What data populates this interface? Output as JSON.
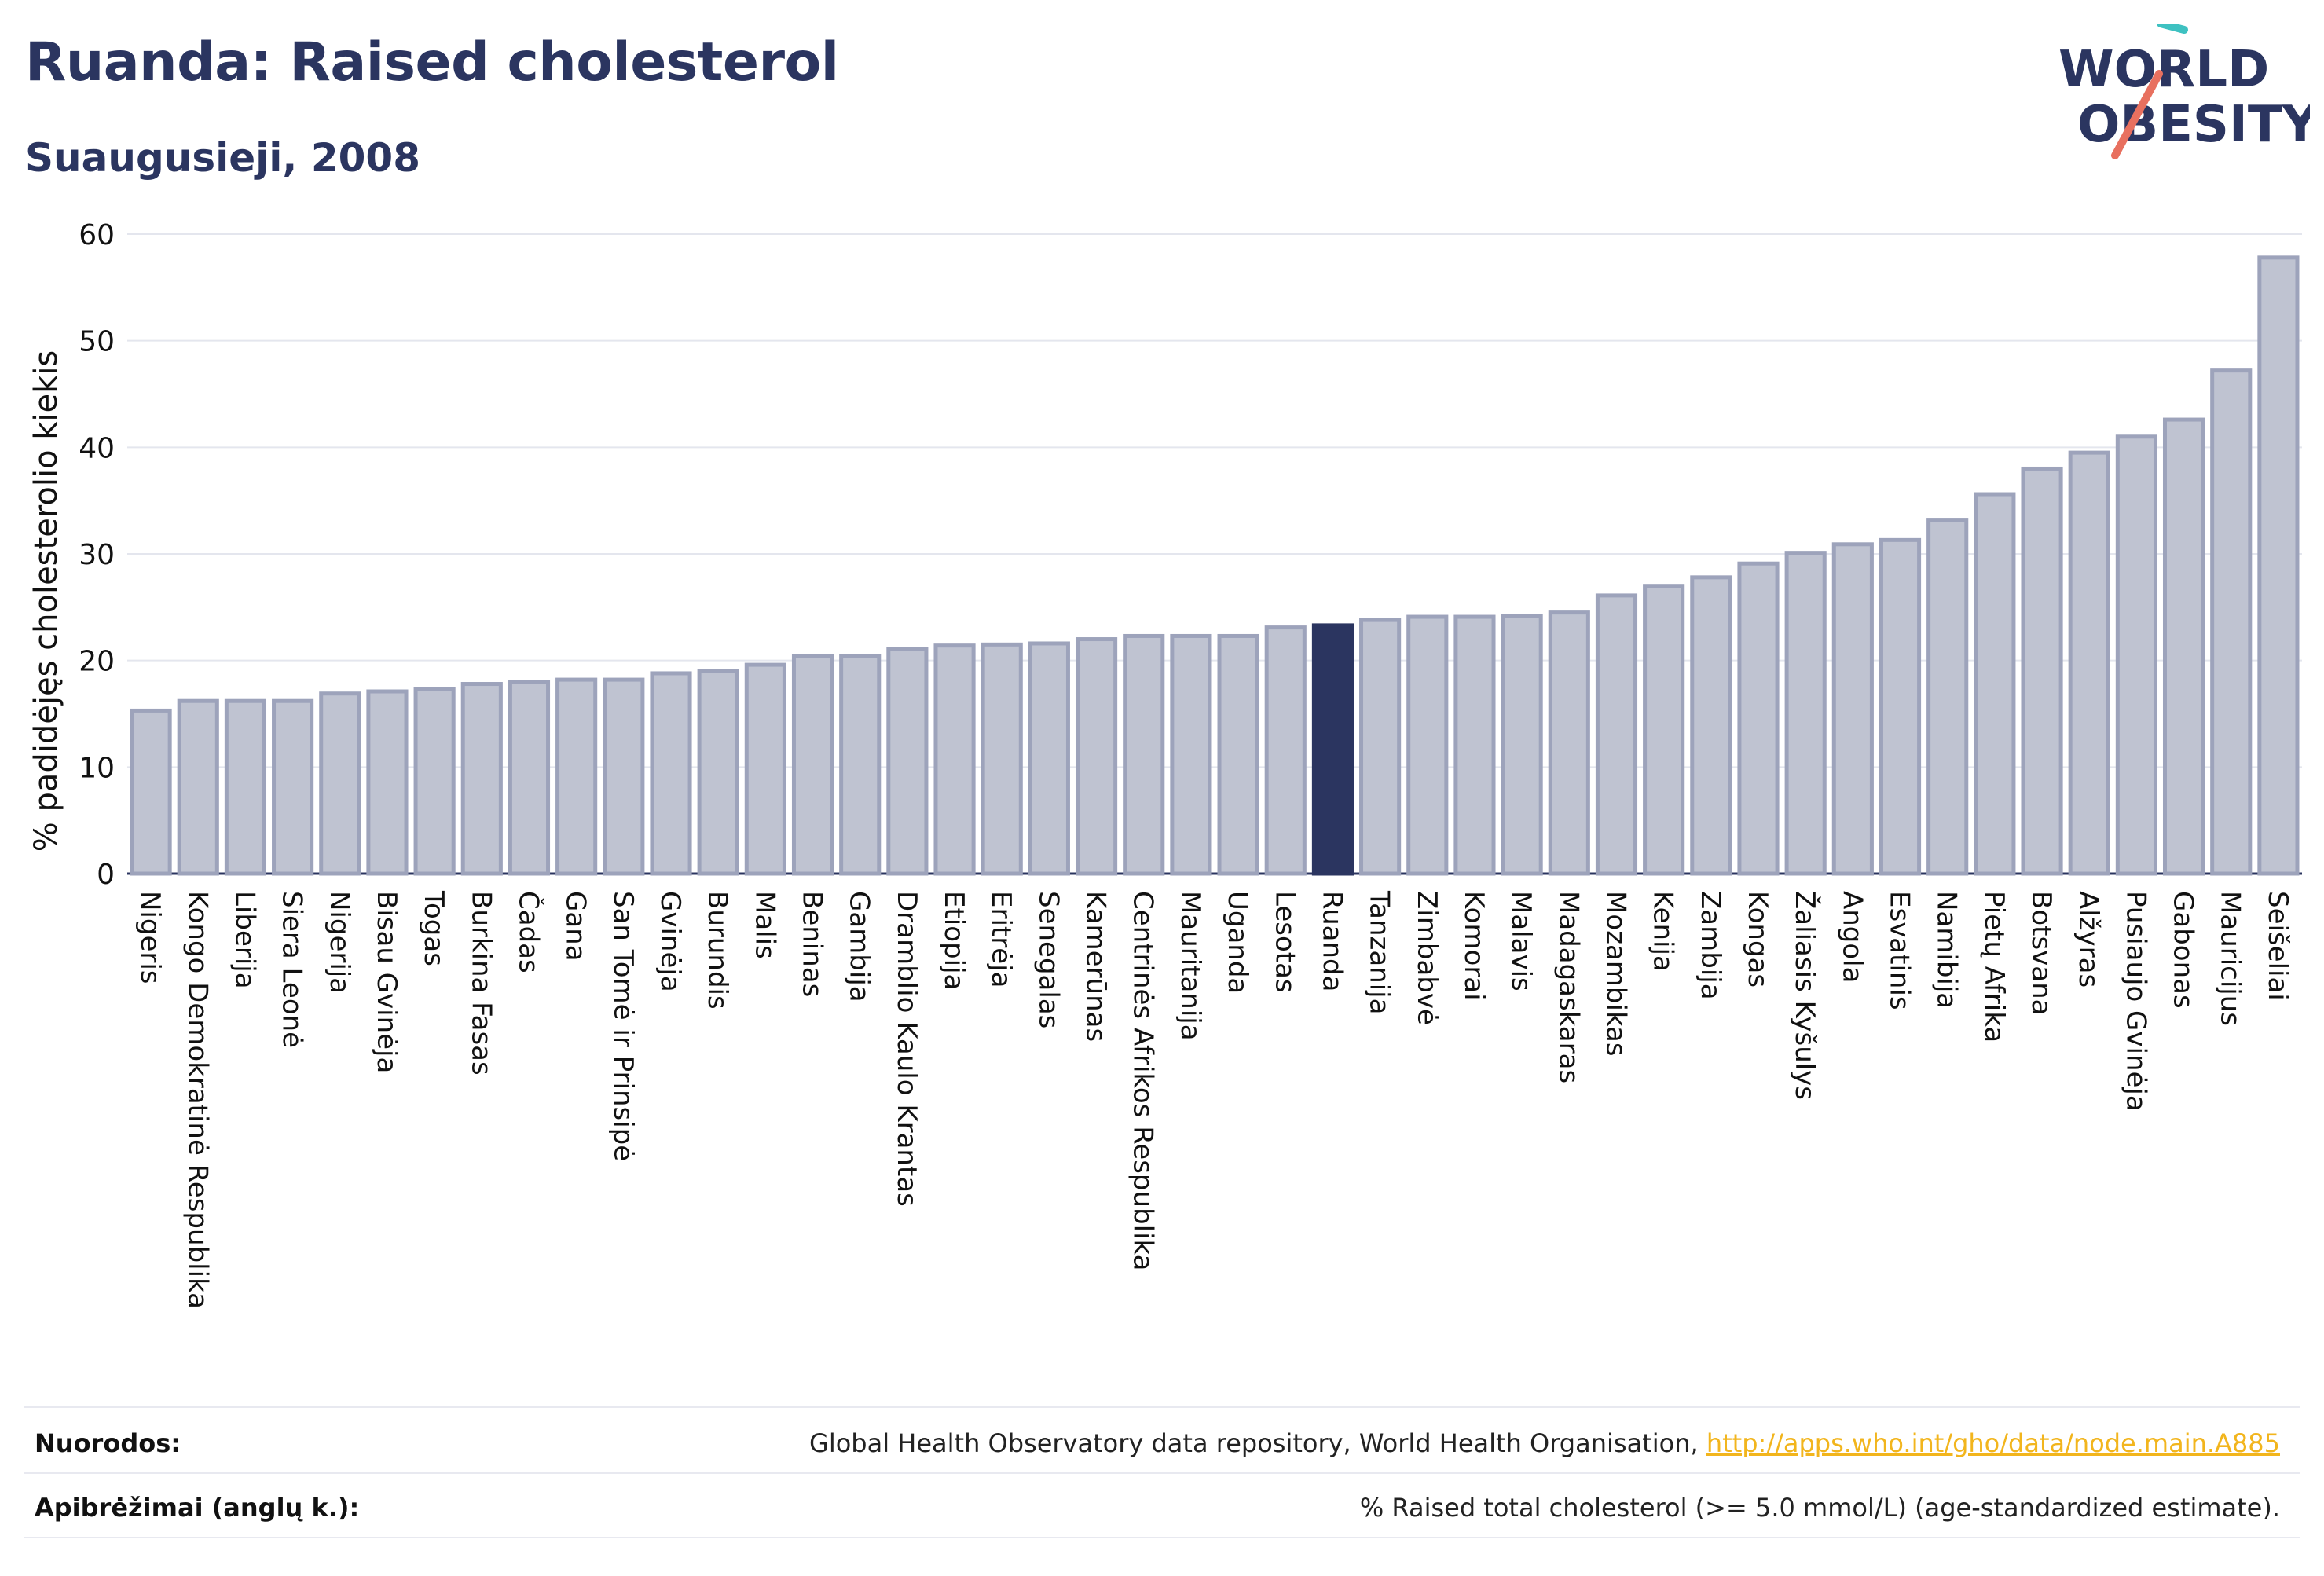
{
  "header": {
    "title": "Ruanda: Raised cholesterol",
    "subtitle": "Suaugusieji, 2008"
  },
  "logo": {
    "line1": "WORLD",
    "line2": "OBESITY",
    "colors": {
      "text": "#2b3560",
      "teal": "#3ec1c1",
      "coral": "#e8705f"
    }
  },
  "chart_data": {
    "type": "bar",
    "title": "",
    "xlabel": "",
    "ylabel": "% padidėjęs cholesterolio kiekis",
    "ylim": [
      0,
      60
    ],
    "yticks": [
      0,
      10,
      20,
      30,
      40,
      50,
      60
    ],
    "grid": true,
    "highlight": "Ruanda",
    "colors": {
      "bar": "#bfc3d1",
      "bar_edge": "#9da3bb",
      "highlight": "#2b3560"
    },
    "categories": [
      "Nigeris",
      "Kongo Demokratinė Respublika",
      "Liberija",
      "Siera Leonė",
      "Nigerija",
      "Bisau Gvinėja",
      "Togas",
      "Burkina Fasas",
      "Čadas",
      "Gana",
      "San Tomė ir Prinsipė",
      "Gvinėja",
      "Burundis",
      "Malis",
      "Beninas",
      "Gambija",
      "Dramblio Kaulo Krantas",
      "Etiopija",
      "Eritrėja",
      "Senegalas",
      "Kamerūnas",
      "Centrinės Afrikos Respublika",
      "Mauritanija",
      "Uganda",
      "Lesotas",
      "Ruanda",
      "Tanzanija",
      "Zimbabvė",
      "Komorai",
      "Malavis",
      "Madagaskaras",
      "Mozambikas",
      "Kenija",
      "Zambija",
      "Kongas",
      "Žaliasis Kyšulys",
      "Angola",
      "Esvatinis",
      "Namibija",
      "Pietų Afrika",
      "Botsvana",
      "Alžyras",
      "Pusiaujo Gvinėja",
      "Gabonas",
      "Mauricijus",
      "Seišeliai"
    ],
    "values": [
      15.3,
      16.2,
      16.2,
      16.2,
      16.9,
      17.1,
      17.3,
      17.8,
      18.0,
      18.2,
      18.2,
      18.8,
      19.0,
      19.6,
      20.4,
      20.4,
      21.1,
      21.4,
      21.5,
      21.6,
      22.0,
      22.3,
      22.3,
      22.3,
      23.1,
      23.3,
      23.8,
      24.1,
      24.1,
      24.2,
      24.5,
      26.1,
      27.0,
      27.8,
      29.1,
      30.1,
      30.9,
      31.3,
      33.2,
      35.6,
      38.0,
      39.5,
      41.0,
      42.6,
      47.2,
      57.8
    ]
  },
  "footer": {
    "references_label": "Nuorodos:",
    "references_text": "Global Health Observatory data repository, World Health Organisation, ",
    "references_link": "http://apps.who.int/gho/data/node.main.A885",
    "definitions_label": "Apibrėžimai (anglų k.):",
    "definitions_text": "% Raised total cholesterol (>= 5.0 mmol/L) (age-standardized estimate)."
  }
}
